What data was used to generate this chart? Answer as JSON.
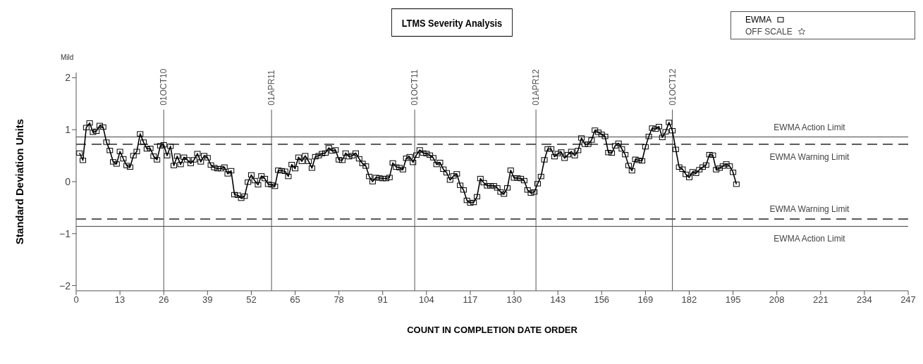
{
  "chart_data": {
    "type": "line",
    "title": "LTMS Severity Analysis",
    "xlabel": "COUNT IN COMPLETION DATE ORDER",
    "ylabel": "Standard Deviation Units",
    "annotations": [
      "Mild",
      "OFF SCALE"
    ],
    "x": [
      1,
      2,
      3,
      4,
      5,
      6,
      7,
      8,
      9,
      10,
      11,
      12,
      13,
      14,
      15,
      16,
      17,
      18,
      19,
      20,
      21,
      22,
      23,
      24,
      25,
      26,
      27,
      28,
      29,
      30,
      31,
      32,
      33,
      34,
      35,
      36,
      37,
      38,
      39,
      40,
      41,
      42,
      43,
      44,
      45,
      46,
      47,
      48,
      49,
      50,
      51,
      52,
      53,
      54,
      55,
      56,
      57,
      58,
      59,
      60,
      61,
      62,
      63,
      64,
      65,
      66,
      67,
      68,
      69,
      70,
      71,
      72,
      73,
      74,
      75,
      76,
      77,
      78,
      79,
      80,
      81,
      82,
      83,
      84,
      85,
      86,
      87,
      88,
      89,
      90,
      91,
      92,
      93,
      94,
      95,
      96,
      97,
      98,
      99,
      100,
      101,
      102,
      103,
      104,
      105,
      106,
      107,
      108,
      109,
      110,
      111,
      112,
      113,
      114,
      115,
      116,
      117,
      118,
      119,
      120,
      121,
      122,
      123,
      124,
      125,
      126,
      127,
      128,
      129,
      130,
      131,
      132,
      133,
      134,
      135,
      136,
      137,
      138,
      139,
      140,
      141,
      142,
      143,
      144,
      145,
      146,
      147,
      148,
      149,
      150,
      151,
      152,
      153,
      154,
      155,
      156,
      157,
      158,
      159,
      160,
      161,
      162,
      163,
      164,
      165,
      166,
      167,
      168,
      169,
      170,
      171,
      172,
      173,
      174,
      175,
      176,
      177,
      178,
      179,
      180,
      181,
      182,
      183,
      184,
      185,
      186,
      187,
      188,
      189,
      190,
      191,
      192,
      193,
      194,
      195,
      196
    ],
    "series": [
      {
        "name": "EWMA",
        "color": "#000000",
        "marker": "square",
        "values": [
          0.55,
          0.41,
          1.04,
          1.13,
          0.95,
          0.97,
          1.08,
          1.05,
          0.76,
          0.6,
          0.38,
          0.34,
          0.58,
          0.44,
          0.31,
          0.28,
          0.5,
          0.58,
          0.92,
          0.76,
          0.63,
          0.64,
          0.49,
          0.42,
          0.69,
          0.71,
          0.5,
          0.68,
          0.31,
          0.49,
          0.33,
          0.47,
          0.42,
          0.35,
          0.42,
          0.54,
          0.38,
          0.5,
          0.46,
          0.32,
          0.27,
          0.25,
          0.25,
          0.28,
          0.15,
          0.21,
          -0.25,
          -0.26,
          -0.32,
          -0.28,
          -0.01,
          0.13,
          0.02,
          -0.06,
          0.11,
          0.06,
          -0.05,
          -0.06,
          -0.09,
          0.22,
          0.21,
          0.2,
          0.1,
          0.33,
          0.25,
          0.47,
          0.39,
          0.5,
          0.39,
          0.26,
          0.48,
          0.5,
          0.54,
          0.55,
          0.65,
          0.59,
          0.61,
          0.42,
          0.41,
          0.55,
          0.48,
          0.5,
          0.55,
          0.44,
          0.35,
          0.3,
          0.1,
          0.0,
          0.08,
          0.07,
          0.06,
          0.06,
          0.08,
          0.36,
          0.28,
          0.27,
          0.23,
          0.45,
          0.48,
          0.37,
          0.51,
          0.61,
          0.55,
          0.54,
          0.51,
          0.46,
          0.33,
          0.37,
          0.24,
          0.17,
          0.03,
          0.11,
          0.15,
          -0.07,
          -0.16,
          -0.36,
          -0.41,
          -0.4,
          -0.29,
          0.06,
          -0.02,
          -0.08,
          -0.08,
          -0.08,
          -0.12,
          -0.2,
          -0.24,
          -0.12,
          0.22,
          0.07,
          0.07,
          0.06,
          0.02,
          -0.16,
          -0.22,
          -0.2,
          -0.04,
          0.1,
          0.42,
          0.63,
          0.63,
          0.48,
          0.54,
          0.57,
          0.45,
          0.52,
          0.58,
          0.5,
          0.6,
          0.84,
          0.72,
          0.72,
          0.8,
          0.99,
          0.95,
          0.91,
          0.87,
          0.56,
          0.55,
          0.69,
          0.74,
          0.63,
          0.52,
          0.31,
          0.21,
          0.43,
          0.41,
          0.4,
          0.67,
          0.87,
          1.03,
          1.01,
          1.06,
          0.85,
          0.96,
          1.14,
          0.98,
          0.62,
          0.28,
          0.24,
          0.14,
          0.08,
          0.19,
          0.16,
          0.23,
          0.28,
          0.32,
          0.52,
          0.51,
          0.23,
          0.26,
          0.3,
          0.34,
          0.3,
          0.18,
          -0.05
        ]
      }
    ],
    "line_style": "solid",
    "legend": "top right",
    "xlim": [
      0,
      247
    ],
    "xticks": [
      0,
      13,
      26,
      39,
      52,
      65,
      78,
      91,
      104,
      117,
      130,
      143,
      156,
      169,
      182,
      195,
      208,
      221,
      234,
      247
    ],
    "ylim": [
      -2.1,
      2.1
    ],
    "yticks": [
      -2,
      -1,
      0,
      1,
      2
    ],
    "ref_lines": [
      {
        "axis": "y",
        "value": 0.86,
        "label": "EWMA Action Limit",
        "line_style": "solid"
      },
      {
        "axis": "y",
        "value": 0.72,
        "label": "EWMA Warning Limit",
        "line_style": "dashed"
      },
      {
        "axis": "y",
        "value": -0.72,
        "label": "EWMA Warning Limit",
        "line_style": "dashed"
      },
      {
        "axis": "y",
        "value": -0.86,
        "label": "EWMA Action Limit",
        "line_style": "solid"
      },
      {
        "axis": "x",
        "value": 26,
        "label": "01OCT10",
        "line_style": "solid"
      },
      {
        "axis": "x",
        "value": 58,
        "label": "01APR11",
        "line_style": "solid"
      },
      {
        "axis": "x",
        "value": 100.5,
        "label": "01OCT11",
        "line_style": "solid"
      },
      {
        "axis": "x",
        "value": 136.5,
        "label": "01APR12",
        "line_style": "solid"
      },
      {
        "axis": "x",
        "value": 177,
        "label": "01OCT12",
        "line_style": "solid"
      }
    ]
  }
}
